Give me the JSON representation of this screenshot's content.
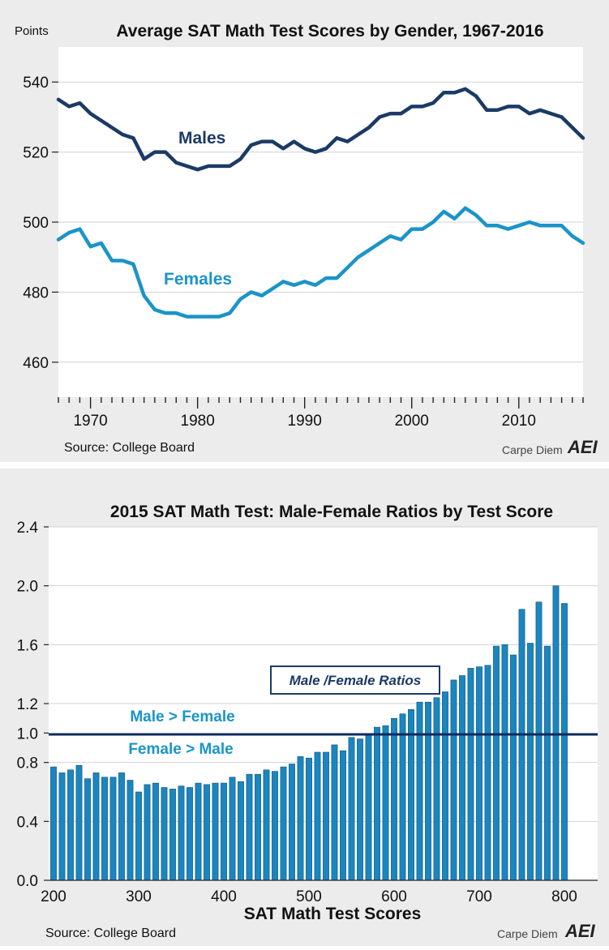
{
  "chart_data": [
    {
      "type": "line",
      "title": "Average SAT Math Test Scores by Gender, 1967-2016",
      "ylabel": "Points",
      "xlim": [
        1967,
        2016
      ],
      "ylim": [
        450,
        550
      ],
      "y_ticks": [
        460,
        480,
        500,
        520,
        540
      ],
      "x_tick_labels": [
        "1970",
        "1980",
        "1990",
        "2000",
        "2010"
      ],
      "grid": "horizontal",
      "x": [
        1967,
        1968,
        1969,
        1970,
        1971,
        1972,
        1973,
        1974,
        1975,
        1976,
        1977,
        1978,
        1979,
        1980,
        1981,
        1982,
        1983,
        1984,
        1985,
        1986,
        1987,
        1988,
        1989,
        1990,
        1991,
        1992,
        1993,
        1994,
        1995,
        1996,
        1997,
        1998,
        1999,
        2000,
        2001,
        2002,
        2003,
        2004,
        2005,
        2006,
        2007,
        2008,
        2009,
        2010,
        2011,
        2012,
        2013,
        2014,
        2015,
        2016
      ],
      "series": [
        {
          "name": "Males",
          "color": "#1b3a66",
          "values": [
            535,
            533,
            534,
            531,
            529,
            527,
            525,
            524,
            518,
            520,
            520,
            517,
            516,
            515,
            516,
            516,
            516,
            518,
            522,
            523,
            523,
            521,
            523,
            521,
            520,
            521,
            524,
            523,
            525,
            527,
            530,
            531,
            531,
            533,
            533,
            534,
            537,
            537,
            538,
            536,
            532,
            532,
            533,
            533,
            531,
            532,
            531,
            530,
            527,
            524
          ]
        },
        {
          "name": "Females",
          "color": "#1a94c9",
          "values": [
            495,
            497,
            498,
            493,
            494,
            489,
            489,
            488,
            479,
            475,
            474,
            474,
            473,
            473,
            473,
            473,
            474,
            478,
            480,
            479,
            481,
            483,
            482,
            483,
            482,
            484,
            484,
            487,
            490,
            492,
            494,
            496,
            495,
            498,
            498,
            500,
            503,
            501,
            504,
            502,
            499,
            499,
            498,
            499,
            500,
            499,
            499,
            499,
            496,
            494
          ]
        }
      ],
      "source": "Source: College Board",
      "brand": "Carpe Diem",
      "logo": "AEI"
    },
    {
      "type": "bar",
      "title": "2015 SAT Math Test: Male-Female Ratios by Test Score",
      "xlabel": "SAT Math Test Scores",
      "ylim": [
        0,
        2.4
      ],
      "y_ticks": [
        "0.0",
        "0.4",
        "0.8",
        "1.0",
        "1.2",
        "1.6",
        "2.0",
        "2.4"
      ],
      "x_tick_labels": [
        "200",
        "300",
        "400",
        "500",
        "600",
        "700",
        "800"
      ],
      "x_start": 200,
      "x_step": 10,
      "color": "#1a86c0",
      "reference_line": 1.0,
      "legend_box": "Male /Female Ratios",
      "annotations": [
        "Male > Female",
        "Female > Male"
      ],
      "values": [
        0.77,
        0.73,
        0.75,
        0.78,
        0.69,
        0.73,
        0.7,
        0.7,
        0.73,
        0.68,
        0.6,
        0.65,
        0.66,
        0.63,
        0.62,
        0.64,
        0.63,
        0.66,
        0.65,
        0.66,
        0.66,
        0.7,
        0.67,
        0.72,
        0.72,
        0.75,
        0.74,
        0.77,
        0.79,
        0.84,
        0.83,
        0.87,
        0.87,
        0.92,
        0.88,
        0.97,
        0.96,
        0.99,
        1.04,
        1.05,
        1.1,
        1.13,
        1.16,
        1.21,
        1.21,
        1.24,
        1.28,
        1.36,
        1.39,
        1.44,
        1.45,
        1.46,
        1.59,
        1.6,
        1.53,
        1.84,
        1.61,
        1.89,
        1.59,
        2.0,
        1.88
      ],
      "source": "Source: College Board",
      "brand": "Carpe Diem",
      "logo": "AEI"
    }
  ]
}
